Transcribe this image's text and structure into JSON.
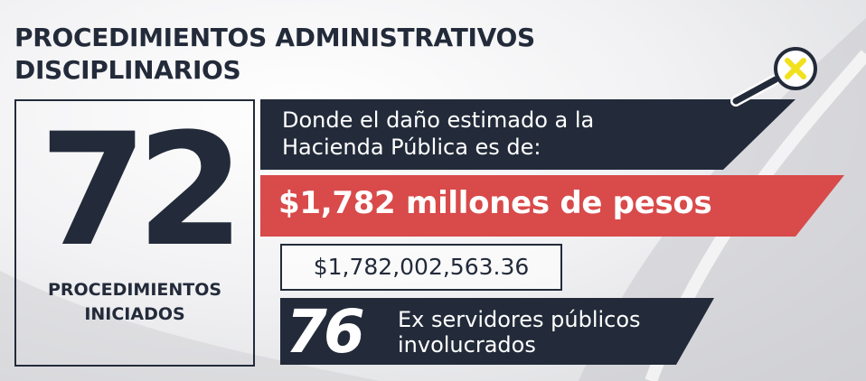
{
  "title": {
    "line1": "PROCEDIMIENTOS ADMINISTRATIVOS",
    "line2": "DISCIPLINARIOS"
  },
  "procedures": {
    "count": "72",
    "label_line1": "PROCEDIMIENTOS",
    "label_line2": "INICIADOS"
  },
  "damage": {
    "intro_line1": "Donde el daño estimado a la",
    "intro_line2": "Hacienda Pública es de:",
    "headline": "$1,782 millones de pesos",
    "exact_amount": "$1,782,002,563.36"
  },
  "officials": {
    "count": "76",
    "label_line1": "Ex servidores públicos",
    "label_line2": "involucrados"
  },
  "icons": {
    "magnifier": "magnifying-glass-x-icon"
  },
  "colors": {
    "navy": "#232b3a",
    "red": "#d94a4a",
    "yellow": "#f2e01c",
    "white": "#ffffff"
  }
}
